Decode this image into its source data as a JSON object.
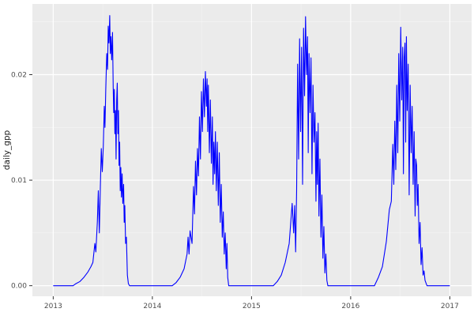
{
  "figure": {
    "bg_color": "#FFFFFF",
    "panel_bg_color": "#EBEBEB",
    "grid_major_color": "#FFFFFF",
    "grid_minor_color": "#F5F5F5",
    "tick_mark_color": "#333333",
    "tick_label_color": "#4D4D4D",
    "axis_title_color": "#1A1A1A",
    "line_color": "#0000FF"
  },
  "chart_data": {
    "type": "line",
    "title": "",
    "xlabel": "",
    "ylabel": "daily_gpp",
    "legend": "none",
    "grid": "on",
    "xlim": [
      2012.79,
      2017.22
    ],
    "ylim": [
      -0.001,
      0.0267
    ],
    "x_ticks": [
      2013,
      2014,
      2015,
      2016,
      2017
    ],
    "x_tick_labels": [
      "2013",
      "2014",
      "2015",
      "2016",
      "2017"
    ],
    "x_minor_ticks": [
      2013.5,
      2014.5,
      2015.5,
      2016.5
    ],
    "y_ticks": [
      0,
      0.01,
      0.02
    ],
    "y_tick_labels": [
      "0.00",
      "0.01",
      "0.02"
    ],
    "y_minor_ticks": [
      0.005,
      0.015,
      0.025
    ],
    "series": [
      {
        "name": "daily_gpp",
        "color": "#0000FF",
        "points": [
          [
            2013.0,
            0
          ],
          [
            2013.2,
            0
          ],
          [
            2013.23,
            0.0002
          ],
          [
            2013.27,
            0.0004
          ],
          [
            2013.31,
            0.0008
          ],
          [
            2013.35,
            0.0013
          ],
          [
            2013.38,
            0.0018
          ],
          [
            2013.4,
            0.0022
          ],
          [
            2013.42,
            0.004
          ],
          [
            2013.43,
            0.0032
          ],
          [
            2013.445,
            0.006
          ],
          [
            2013.455,
            0.009
          ],
          [
            2013.465,
            0.005
          ],
          [
            2013.475,
            0.0092
          ],
          [
            2013.485,
            0.013
          ],
          [
            2013.495,
            0.0108
          ],
          [
            2013.505,
            0.0132
          ],
          [
            2013.515,
            0.017
          ],
          [
            2013.522,
            0.015
          ],
          [
            2013.53,
            0.0186
          ],
          [
            2013.54,
            0.022
          ],
          [
            2013.548,
            0.0205
          ],
          [
            2013.555,
            0.0246
          ],
          [
            2013.562,
            0.023
          ],
          [
            2013.57,
            0.0256
          ],
          [
            2013.576,
            0.022
          ],
          [
            2013.582,
            0.0236
          ],
          [
            2013.59,
            0.0214
          ],
          [
            2013.598,
            0.024
          ],
          [
            2013.605,
            0.0188
          ],
          [
            2013.61,
            0.0164
          ],
          [
            2013.616,
            0.0186
          ],
          [
            2013.622,
            0.0144
          ],
          [
            2013.628,
            0.0166
          ],
          [
            2013.634,
            0.012
          ],
          [
            2013.64,
            0.0176
          ],
          [
            2013.646,
            0.0192
          ],
          [
            2013.652,
            0.0144
          ],
          [
            2013.658,
            0.0166
          ],
          [
            2013.664,
            0.0114
          ],
          [
            2013.67,
            0.0136
          ],
          [
            2013.676,
            0.009
          ],
          [
            2013.682,
            0.0112
          ],
          [
            2013.688,
            0.0084
          ],
          [
            2013.695,
            0.0106
          ],
          [
            2013.702,
            0.0078
          ],
          [
            2013.71,
            0.0096
          ],
          [
            2013.716,
            0.006
          ],
          [
            2013.722,
            0.0076
          ],
          [
            2013.73,
            0.004
          ],
          [
            2013.738,
            0.0046
          ],
          [
            2013.748,
            0.001
          ],
          [
            2013.758,
            0.0002
          ],
          [
            2013.77,
            0
          ],
          [
            2014.2,
            0
          ],
          [
            2014.24,
            0.0003
          ],
          [
            2014.28,
            0.0008
          ],
          [
            2014.32,
            0.0016
          ],
          [
            2014.35,
            0.003
          ],
          [
            2014.36,
            0.0046
          ],
          [
            2014.37,
            0.003
          ],
          [
            2014.38,
            0.0052
          ],
          [
            2014.4,
            0.004
          ],
          [
            2014.415,
            0.0094
          ],
          [
            2014.425,
            0.0068
          ],
          [
            2014.435,
            0.0118
          ],
          [
            2014.445,
            0.0086
          ],
          [
            2014.455,
            0.013
          ],
          [
            2014.465,
            0.0104
          ],
          [
            2014.475,
            0.016
          ],
          [
            2014.485,
            0.012
          ],
          [
            2014.495,
            0.0184
          ],
          [
            2014.505,
            0.0146
          ],
          [
            2014.515,
            0.0196
          ],
          [
            2014.525,
            0.016
          ],
          [
            2014.535,
            0.0203
          ],
          [
            2014.545,
            0.017
          ],
          [
            2014.552,
            0.0196
          ],
          [
            2014.558,
            0.0146
          ],
          [
            2014.565,
            0.019
          ],
          [
            2014.575,
            0.0126
          ],
          [
            2014.585,
            0.0176
          ],
          [
            2014.595,
            0.0116
          ],
          [
            2014.605,
            0.016
          ],
          [
            2014.612,
            0.0096
          ],
          [
            2014.62,
            0.0136
          ],
          [
            2014.628,
            0.0106
          ],
          [
            2014.636,
            0.0146
          ],
          [
            2014.645,
            0.009
          ],
          [
            2014.655,
            0.0136
          ],
          [
            2014.665,
            0.0076
          ],
          [
            2014.675,
            0.0126
          ],
          [
            2014.685,
            0.006
          ],
          [
            2014.695,
            0.0096
          ],
          [
            2014.705,
            0.0046
          ],
          [
            2014.715,
            0.007
          ],
          [
            2014.725,
            0.003
          ],
          [
            2014.735,
            0.005
          ],
          [
            2014.745,
            0.0016
          ],
          [
            2014.752,
            0.004
          ],
          [
            2014.76,
            0.0008
          ],
          [
            2014.77,
            0
          ],
          [
            2015.22,
            0
          ],
          [
            2015.26,
            0.0004
          ],
          [
            2015.3,
            0.001
          ],
          [
            2015.34,
            0.0022
          ],
          [
            2015.38,
            0.004
          ],
          [
            2015.41,
            0.0078
          ],
          [
            2015.425,
            0.005
          ],
          [
            2015.435,
            0.0076
          ],
          [
            2015.445,
            0.0032
          ],
          [
            2015.455,
            0.009
          ],
          [
            2015.465,
            0.021
          ],
          [
            2015.475,
            0.012
          ],
          [
            2015.485,
            0.0234
          ],
          [
            2015.495,
            0.0146
          ],
          [
            2015.505,
            0.0226
          ],
          [
            2015.515,
            0.0096
          ],
          [
            2015.525,
            0.0244
          ],
          [
            2015.535,
            0.018
          ],
          [
            2015.545,
            0.0255
          ],
          [
            2015.555,
            0.02
          ],
          [
            2015.565,
            0.0236
          ],
          [
            2015.572,
            0.0126
          ],
          [
            2015.58,
            0.022
          ],
          [
            2015.59,
            0.0164
          ],
          [
            2015.6,
            0.0216
          ],
          [
            2015.61,
            0.0106
          ],
          [
            2015.62,
            0.019
          ],
          [
            2015.63,
            0.0136
          ],
          [
            2015.64,
            0.0164
          ],
          [
            2015.65,
            0.008
          ],
          [
            2015.657,
            0.0146
          ],
          [
            2015.664,
            0.0096
          ],
          [
            2015.672,
            0.0154
          ],
          [
            2015.68,
            0.0066
          ],
          [
            2015.69,
            0.012
          ],
          [
            2015.7,
            0.0046
          ],
          [
            2015.71,
            0.0086
          ],
          [
            2015.72,
            0.0026
          ],
          [
            2015.73,
            0.0056
          ],
          [
            2015.74,
            0.0012
          ],
          [
            2015.75,
            0.003
          ],
          [
            2015.76,
            0.0005
          ],
          [
            2015.77,
            0
          ],
          [
            2016.24,
            0
          ],
          [
            2016.28,
            0.0008
          ],
          [
            2016.32,
            0.0018
          ],
          [
            2016.36,
            0.0042
          ],
          [
            2016.39,
            0.0072
          ],
          [
            2016.41,
            0.008
          ],
          [
            2016.425,
            0.0134
          ],
          [
            2016.435,
            0.0096
          ],
          [
            2016.445,
            0.0156
          ],
          [
            2016.455,
            0.011
          ],
          [
            2016.465,
            0.019
          ],
          [
            2016.475,
            0.0126
          ],
          [
            2016.485,
            0.022
          ],
          [
            2016.495,
            0.0156
          ],
          [
            2016.505,
            0.0245
          ],
          [
            2016.515,
            0.0176
          ],
          [
            2016.525,
            0.0226
          ],
          [
            2016.532,
            0.0106
          ],
          [
            2016.54,
            0.0216
          ],
          [
            2016.548,
            0.023
          ],
          [
            2016.555,
            0.0136
          ],
          [
            2016.562,
            0.0236
          ],
          [
            2016.57,
            0.0166
          ],
          [
            2016.58,
            0.021
          ],
          [
            2016.59,
            0.0086
          ],
          [
            2016.6,
            0.019
          ],
          [
            2016.61,
            0.0126
          ],
          [
            2016.62,
            0.017
          ],
          [
            2016.63,
            0.0096
          ],
          [
            2016.64,
            0.0146
          ],
          [
            2016.65,
            0.0066
          ],
          [
            2016.657,
            0.012
          ],
          [
            2016.665,
            0.0114
          ],
          [
            2016.672,
            0.0076
          ],
          [
            2016.68,
            0.0096
          ],
          [
            2016.69,
            0.004
          ],
          [
            2016.7,
            0.006
          ],
          [
            2016.71,
            0.002
          ],
          [
            2016.72,
            0.0036
          ],
          [
            2016.73,
            0.001
          ],
          [
            2016.74,
            0.0014
          ],
          [
            2016.75,
            0.0005
          ],
          [
            2016.77,
            0
          ],
          [
            2017.0,
            0
          ]
        ]
      }
    ]
  }
}
